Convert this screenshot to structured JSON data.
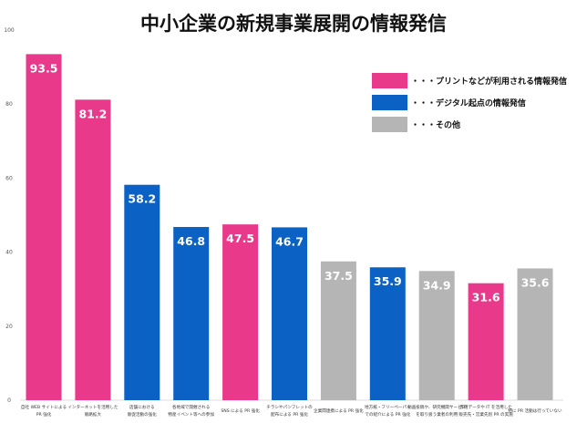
{
  "chart_data": {
    "type": "bar",
    "title": "中小企業の新規事業展開の情報発信",
    "ylim": [
      0,
      100
    ],
    "yticks": [
      0,
      20,
      40,
      60,
      80,
      100
    ],
    "grid": false,
    "legend_position": "top-right",
    "legend": [
      {
        "name": "・・・プリントなどが利用される情報発信",
        "color": "#E8398A"
      },
      {
        "name": "・・・デジタル起点の情報発信",
        "color": "#0B62C4"
      },
      {
        "name": "・・・その他",
        "color": "#B5B5B5"
      }
    ],
    "categories": [
      [
        "自社 WEB サイトによる",
        "PR 強化"
      ],
      [
        "インターネットを活用した",
        "販路拡大"
      ],
      [
        "店舗における",
        "販促活動の強化"
      ],
      [
        "各地域で開催される",
        "物産イベント等への参加"
      ],
      [
        "SNS による PR 強化"
      ],
      [
        "チラシやパンフレットの",
        "配布による PR 強化"
      ],
      [
        "企業間連携による PR 強化"
      ],
      [
        "地方紙・フリーペーパー",
        "での紹介による PR 強化"
      ],
      [
        "動画投稿や、研究機関サービス",
        "を取り扱う業者の利用"
      ],
      [
        "専用データや IT を活用した",
        "販売先・営業先別 PR の実施"
      ],
      [
        "特に PR 活動は行っていない"
      ]
    ],
    "values": [
      93.5,
      81.2,
      58.2,
      46.8,
      47.5,
      46.7,
      37.5,
      35.9,
      34.9,
      31.6,
      35.6
    ],
    "labels": [
      "93.5",
      "81.2",
      "58.2",
      "46.8",
      "47.5",
      "46.7",
      "37.5",
      "35.9",
      "34.9",
      "31.6",
      "35.6"
    ],
    "groups": [
      "print",
      "print",
      "digital",
      "digital",
      "print",
      "digital",
      "other",
      "digital",
      "other",
      "print",
      "other"
    ],
    "colors": {
      "print": "#E8398A",
      "digital": "#0B62C4",
      "other": "#B5B5B5"
    }
  }
}
